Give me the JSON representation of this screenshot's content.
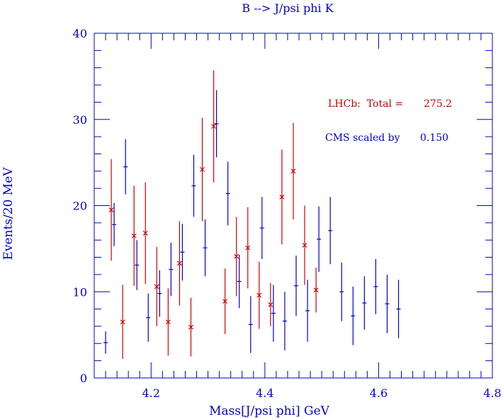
{
  "colors": {
    "axis": "#0000cc",
    "lhcb": "#cc0000",
    "cms": "#0000cc",
    "background": "#ffffff"
  },
  "chart_data": {
    "type": "scatter",
    "title": "B --> J/psi phi K",
    "xlabel": "Mass[J/psi phi] GeV",
    "ylabel": "Events/20 MeV",
    "xlim": [
      4.1,
      4.8
    ],
    "ylim": [
      0,
      40
    ],
    "x_ticks": [
      "4.2",
      "4.4",
      "4.6",
      "4.8"
    ],
    "y_ticks": [
      "0",
      "10",
      "20",
      "30",
      "40"
    ],
    "annotations": {
      "lhcb_label": "LHCb:  Total =",
      "lhcb_total": "275.2",
      "cms_label": "CMS scaled by",
      "cms_scale": "0.150"
    },
    "series": [
      {
        "name": "LHCb",
        "marker": "x",
        "points": [
          {
            "x": 4.13,
            "y": 19.5,
            "err": 5.9
          },
          {
            "x": 4.15,
            "y": 6.5,
            "err": 4.3
          },
          {
            "x": 4.17,
            "y": 16.5,
            "err": 5.8
          },
          {
            "x": 4.19,
            "y": 16.8,
            "err": 5.9
          },
          {
            "x": 4.21,
            "y": 10.6,
            "err": 4.6
          },
          {
            "x": 4.23,
            "y": 6.5,
            "err": 3.9
          },
          {
            "x": 4.25,
            "y": 13.3,
            "err": 4.9
          },
          {
            "x": 4.27,
            "y": 5.9,
            "err": 3.4
          },
          {
            "x": 4.29,
            "y": 24.2,
            "err": 6.0
          },
          {
            "x": 4.31,
            "y": 29.2,
            "err": 6.5
          },
          {
            "x": 4.33,
            "y": 8.9,
            "err": 3.8
          },
          {
            "x": 4.35,
            "y": 14.1,
            "err": 4.6
          },
          {
            "x": 4.37,
            "y": 15.1,
            "err": 4.7
          },
          {
            "x": 4.39,
            "y": 9.6,
            "err": 3.9
          },
          {
            "x": 4.41,
            "y": 8.5,
            "err": 2.5
          },
          {
            "x": 4.43,
            "y": 21.0,
            "err": 5.5
          },
          {
            "x": 4.45,
            "y": 24.0,
            "err": 5.6
          },
          {
            "x": 4.47,
            "y": 15.4,
            "err": 4.6
          },
          {
            "x": 4.49,
            "y": 10.2,
            "err": 2.6
          }
        ]
      },
      {
        "name": "CMS",
        "marker": "+",
        "points": [
          {
            "x": 4.12,
            "y": 4.1,
            "err": 1.3
          },
          {
            "x": 4.135,
            "y": 17.8,
            "err": 2.5
          },
          {
            "x": 4.155,
            "y": 24.5,
            "err": 3.2
          },
          {
            "x": 4.175,
            "y": 13.1,
            "err": 2.9
          },
          {
            "x": 4.195,
            "y": 7.0,
            "err": 2.8
          },
          {
            "x": 4.215,
            "y": 9.8,
            "err": 2.7
          },
          {
            "x": 4.235,
            "y": 12.6,
            "err": 3.1
          },
          {
            "x": 4.255,
            "y": 14.6,
            "err": 3.3
          },
          {
            "x": 4.275,
            "y": 22.3,
            "err": 3.6
          },
          {
            "x": 4.295,
            "y": 15.1,
            "err": 3.3
          },
          {
            "x": 4.315,
            "y": 29.5,
            "err": 3.9
          },
          {
            "x": 4.335,
            "y": 21.4,
            "err": 3.7
          },
          {
            "x": 4.355,
            "y": 11.2,
            "err": 3.1
          },
          {
            "x": 4.375,
            "y": 6.2,
            "err": 3.3
          },
          {
            "x": 4.395,
            "y": 17.4,
            "err": 3.6
          },
          {
            "x": 4.415,
            "y": 7.5,
            "err": 3.3
          },
          {
            "x": 4.435,
            "y": 6.6,
            "err": 3.4
          },
          {
            "x": 4.455,
            "y": 10.7,
            "err": 3.5
          },
          {
            "x": 4.475,
            "y": 7.8,
            "err": 3.6
          },
          {
            "x": 4.495,
            "y": 16.1,
            "err": 3.8
          },
          {
            "x": 4.515,
            "y": 17.1,
            "err": 3.9
          },
          {
            "x": 4.535,
            "y": 10.0,
            "err": 3.4
          },
          {
            "x": 4.555,
            "y": 7.2,
            "err": 3.4
          },
          {
            "x": 4.575,
            "y": 8.7,
            "err": 3.1
          },
          {
            "x": 4.595,
            "y": 10.6,
            "err": 3.2
          },
          {
            "x": 4.615,
            "y": 8.6,
            "err": 3.4
          },
          {
            "x": 4.635,
            "y": 8.0,
            "err": 3.4
          }
        ]
      }
    ]
  }
}
